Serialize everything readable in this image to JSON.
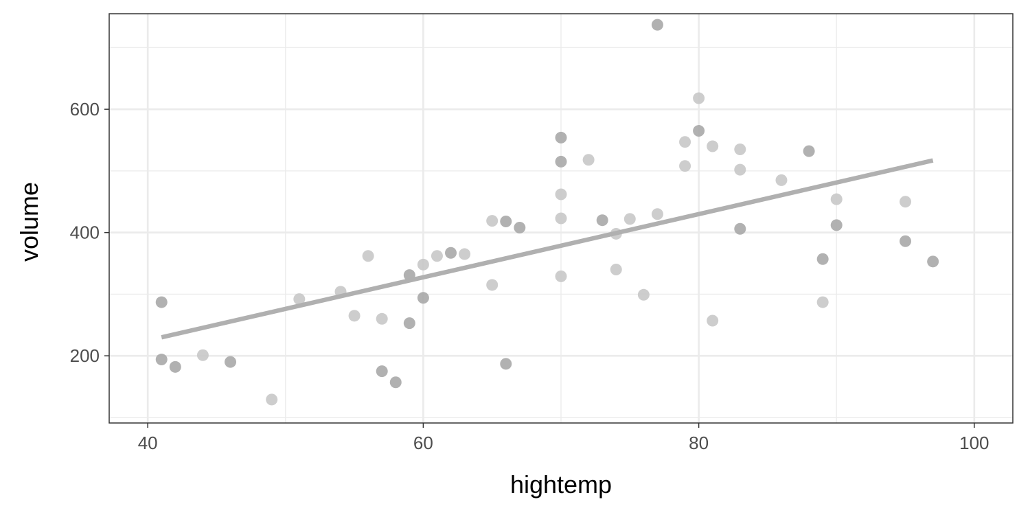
{
  "chart_data": {
    "type": "scatter",
    "title": "",
    "xlabel": "hightemp",
    "ylabel": "volume",
    "xlim": [
      37.2,
      102.8
    ],
    "ylim": [
      91,
      755
    ],
    "x_ticks": [
      40,
      60,
      80,
      100
    ],
    "y_ticks": [
      200,
      400,
      600
    ],
    "grid": true,
    "legend": "none",
    "colors": {
      "point_dark": "#a8a8a8",
      "point_light": "#c8c8c8",
      "fit_line": "#b0b0b0",
      "grid": "#ebebeb",
      "panel_border": "#333333"
    },
    "series": [
      {
        "values": [
          {
            "x": 41,
            "y": 287,
            "shade": "dark"
          },
          {
            "x": 41,
            "y": 194,
            "shade": "dark"
          },
          {
            "x": 42,
            "y": 182,
            "shade": "dark"
          },
          {
            "x": 44,
            "y": 201,
            "shade": "light"
          },
          {
            "x": 46,
            "y": 190,
            "shade": "dark"
          },
          {
            "x": 49,
            "y": 129,
            "shade": "light"
          },
          {
            "x": 51,
            "y": 292,
            "shade": "light"
          },
          {
            "x": 54,
            "y": 304,
            "shade": "light"
          },
          {
            "x": 55,
            "y": 265,
            "shade": "light"
          },
          {
            "x": 56,
            "y": 362,
            "shade": "light"
          },
          {
            "x": 57,
            "y": 260,
            "shade": "light"
          },
          {
            "x": 57,
            "y": 175,
            "shade": "dark"
          },
          {
            "x": 58,
            "y": 157,
            "shade": "dark"
          },
          {
            "x": 59,
            "y": 331,
            "shade": "dark"
          },
          {
            "x": 59,
            "y": 253,
            "shade": "dark"
          },
          {
            "x": 60,
            "y": 348,
            "shade": "light"
          },
          {
            "x": 60,
            "y": 294,
            "shade": "dark"
          },
          {
            "x": 61,
            "y": 362,
            "shade": "light"
          },
          {
            "x": 62,
            "y": 367,
            "shade": "dark"
          },
          {
            "x": 63,
            "y": 365,
            "shade": "light"
          },
          {
            "x": 65,
            "y": 419,
            "shade": "light"
          },
          {
            "x": 65,
            "y": 315,
            "shade": "light"
          },
          {
            "x": 66,
            "y": 418,
            "shade": "dark"
          },
          {
            "x": 66,
            "y": 187,
            "shade": "dark"
          },
          {
            "x": 67,
            "y": 408,
            "shade": "dark"
          },
          {
            "x": 70,
            "y": 554,
            "shade": "dark"
          },
          {
            "x": 70,
            "y": 515,
            "shade": "dark"
          },
          {
            "x": 70,
            "y": 462,
            "shade": "light"
          },
          {
            "x": 70,
            "y": 423,
            "shade": "light"
          },
          {
            "x": 70,
            "y": 329,
            "shade": "light"
          },
          {
            "x": 72,
            "y": 518,
            "shade": "light"
          },
          {
            "x": 73,
            "y": 420,
            "shade": "dark"
          },
          {
            "x": 74,
            "y": 398,
            "shade": "light"
          },
          {
            "x": 74,
            "y": 340,
            "shade": "light"
          },
          {
            "x": 75,
            "y": 422,
            "shade": "light"
          },
          {
            "x": 76,
            "y": 299,
            "shade": "light"
          },
          {
            "x": 77,
            "y": 737,
            "shade": "dark"
          },
          {
            "x": 77,
            "y": 430,
            "shade": "light"
          },
          {
            "x": 79,
            "y": 547,
            "shade": "light"
          },
          {
            "x": 79,
            "y": 508,
            "shade": "light"
          },
          {
            "x": 80,
            "y": 618,
            "shade": "light"
          },
          {
            "x": 80,
            "y": 565,
            "shade": "dark"
          },
          {
            "x": 81,
            "y": 540,
            "shade": "light"
          },
          {
            "x": 81,
            "y": 257,
            "shade": "light"
          },
          {
            "x": 83,
            "y": 535,
            "shade": "light"
          },
          {
            "x": 83,
            "y": 502,
            "shade": "light"
          },
          {
            "x": 83,
            "y": 406,
            "shade": "dark"
          },
          {
            "x": 86,
            "y": 485,
            "shade": "light"
          },
          {
            "x": 88,
            "y": 532,
            "shade": "dark"
          },
          {
            "x": 89,
            "y": 357,
            "shade": "dark"
          },
          {
            "x": 89,
            "y": 287,
            "shade": "light"
          },
          {
            "x": 90,
            "y": 454,
            "shade": "light"
          },
          {
            "x": 90,
            "y": 412,
            "shade": "dark"
          },
          {
            "x": 95,
            "y": 450,
            "shade": "light"
          },
          {
            "x": 95,
            "y": 386,
            "shade": "dark"
          },
          {
            "x": 97,
            "y": 353,
            "shade": "dark"
          }
        ]
      }
    ],
    "fit_line": {
      "x": [
        41,
        97
      ],
      "y": [
        230,
        517
      ]
    }
  }
}
